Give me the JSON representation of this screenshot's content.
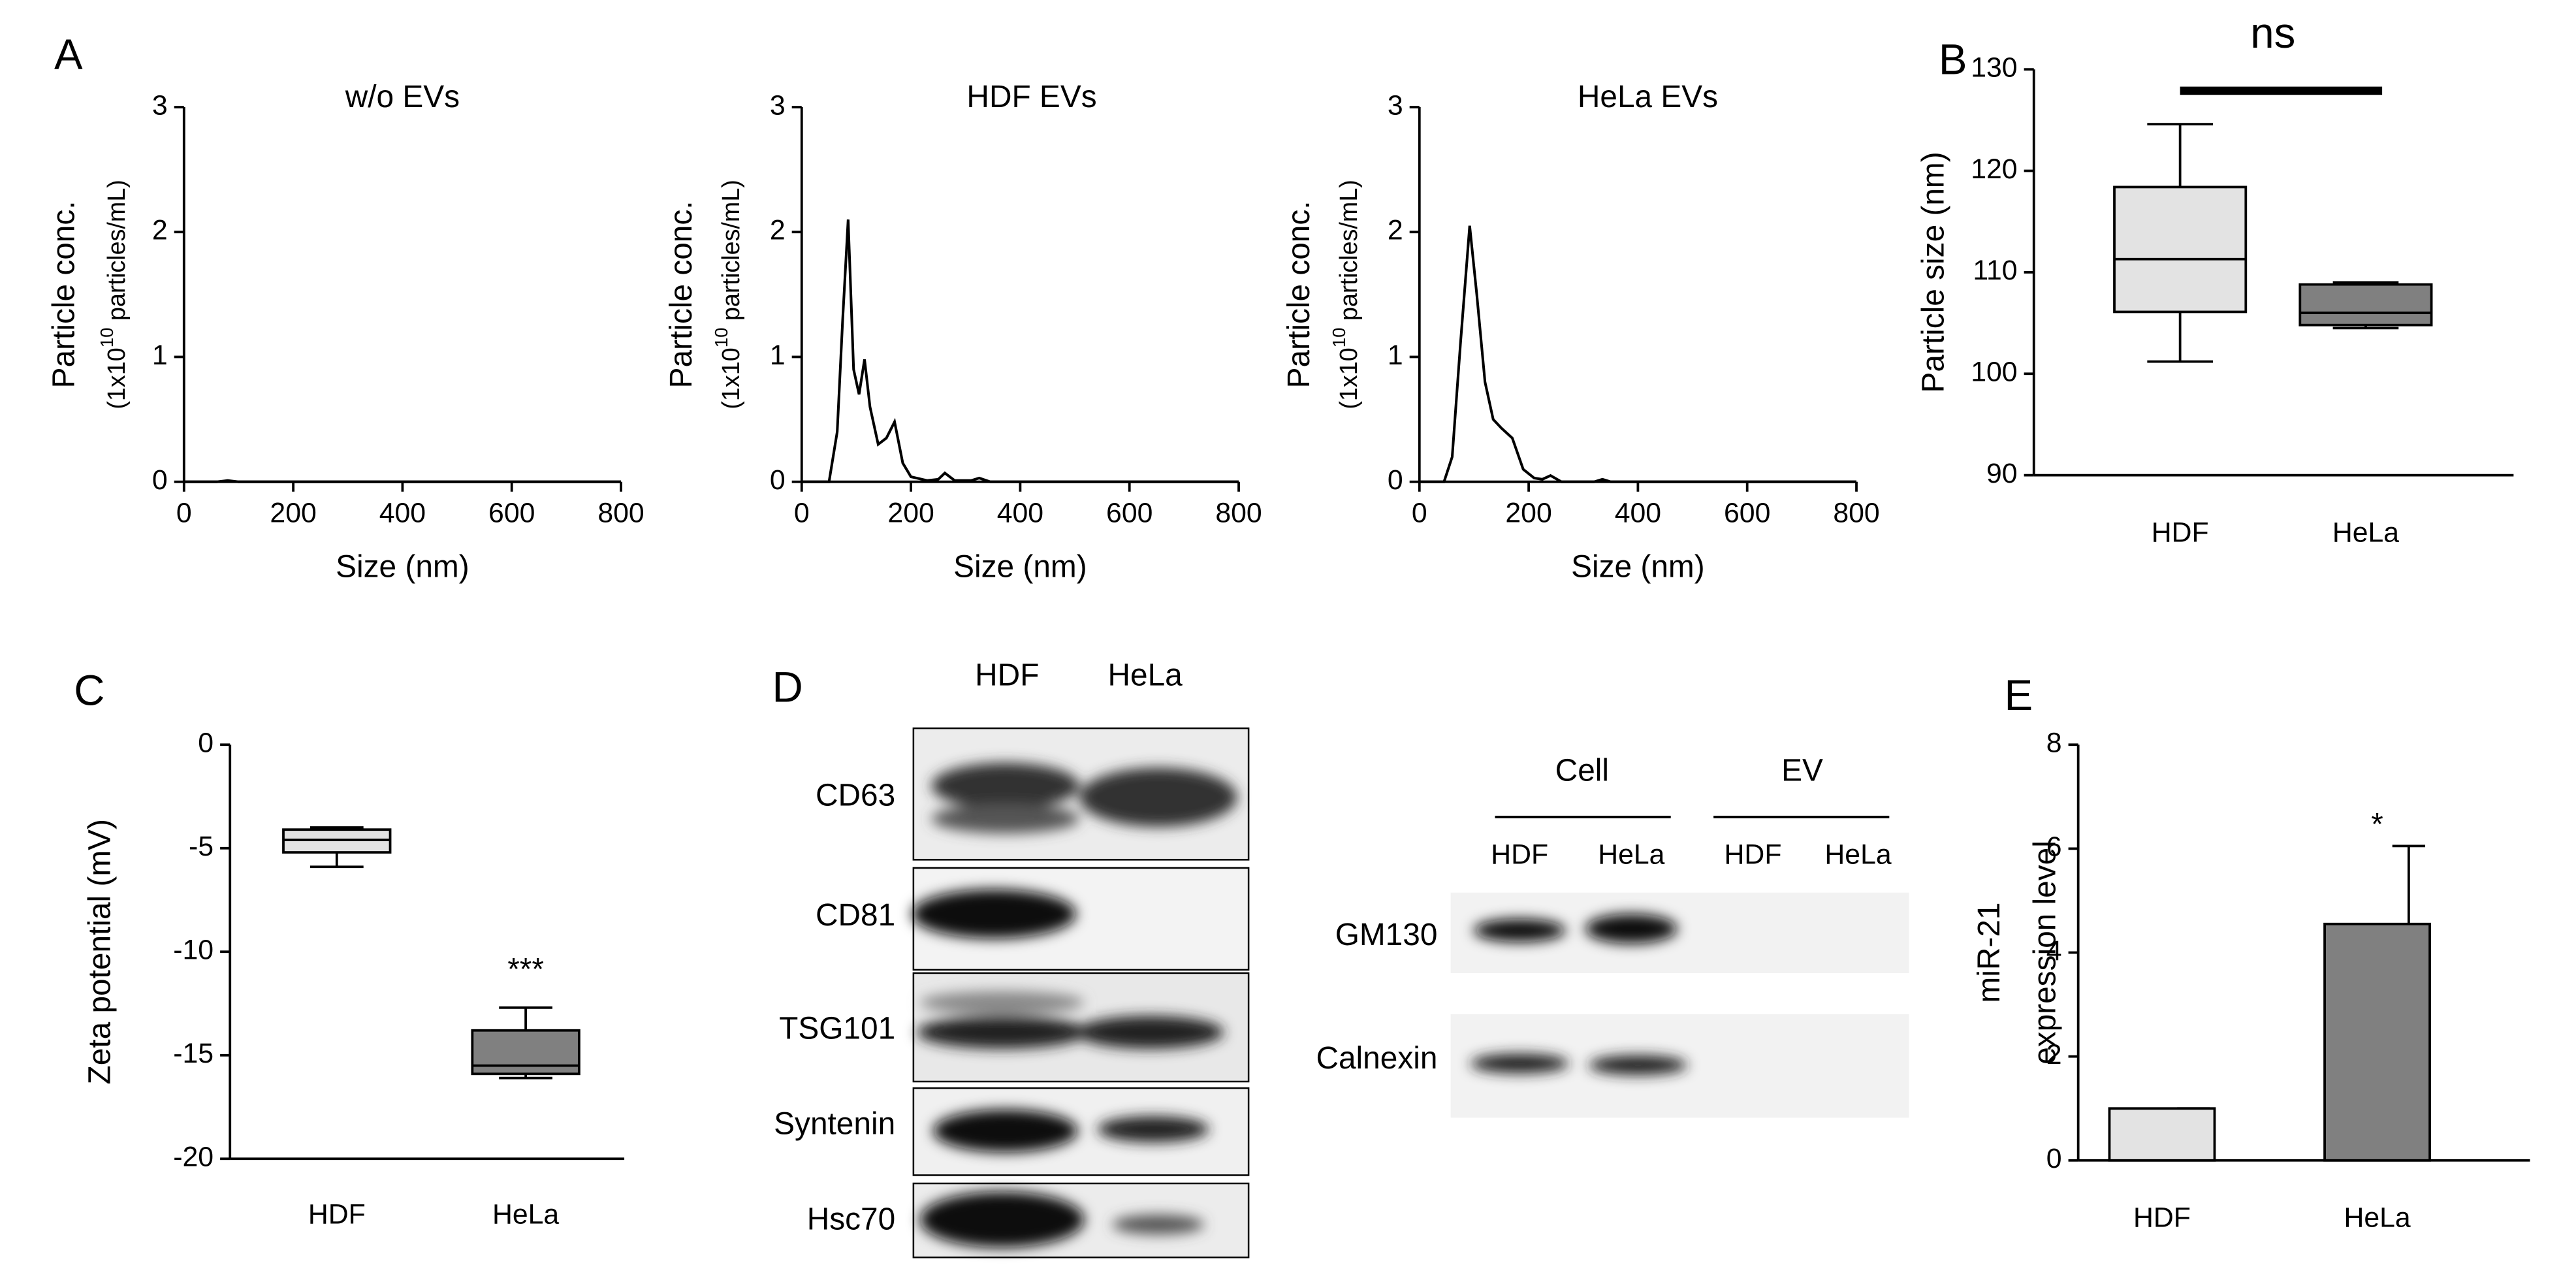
{
  "chart_data": [
    {
      "type": "line",
      "panel": "A",
      "title": "w/o EVs",
      "x_label": "Size (nm)",
      "y_label": "Particle conc.",
      "y_label_sub": "(1x10",
      "y_label_sup": "10",
      "y_label_unit": " particles/mL)",
      "x": [
        0,
        60,
        80,
        100,
        200,
        800
      ],
      "values": [
        0,
        0,
        0.01,
        0,
        0,
        0
      ],
      "color": "#000000",
      "xlim": [
        0,
        800
      ],
      "xticks": [
        0,
        200,
        400,
        600,
        800
      ],
      "ylim": [
        0,
        3
      ],
      "yticks": [
        0,
        1,
        2,
        3
      ]
    },
    {
      "type": "line",
      "title": "HDF EVs",
      "x_label": "Size (nm)",
      "y_label": "Particle conc.",
      "y_label_sub": "(1x10",
      "y_label_sup": "10",
      "y_label_unit": " particles/mL)",
      "x": [
        0,
        50,
        65,
        75,
        85,
        95,
        105,
        115,
        125,
        140,
        155,
        170,
        185,
        200,
        230,
        250,
        262,
        280,
        310,
        325,
        345,
        800
      ],
      "values": [
        0,
        0,
        0.4,
        1.3,
        2.1,
        0.9,
        0.7,
        0.98,
        0.6,
        0.3,
        0.35,
        0.48,
        0.15,
        0.04,
        0.01,
        0.02,
        0.07,
        0.01,
        0.01,
        0.03,
        0,
        0
      ],
      "color": "#000000",
      "xlim": [
        0,
        800
      ],
      "xticks": [
        0,
        200,
        400,
        600,
        800
      ],
      "ylim": [
        0,
        3
      ],
      "yticks": [
        0,
        1,
        2,
        3
      ]
    },
    {
      "type": "line",
      "title": "HeLa EVs",
      "x_label": "Size (nm)",
      "y_label": "Particle conc.",
      "y_label_sub": "(1x10",
      "y_label_sup": "10",
      "y_label_unit": " particles/mL)",
      "x": [
        0,
        45,
        60,
        75,
        92,
        105,
        120,
        135,
        150,
        170,
        190,
        210,
        225,
        240,
        260,
        320,
        335,
        350,
        800
      ],
      "values": [
        0,
        0,
        0.2,
        1.1,
        2.05,
        1.5,
        0.8,
        0.5,
        0.43,
        0.35,
        0.1,
        0.03,
        0.02,
        0.05,
        0,
        0,
        0.02,
        0,
        0
      ],
      "color": "#000000",
      "xlim": [
        0,
        800
      ],
      "xticks": [
        0,
        200,
        400,
        600,
        800
      ],
      "ylim": [
        0,
        3
      ],
      "yticks": [
        0,
        1,
        2,
        3
      ]
    },
    {
      "type": "box",
      "panel": "B",
      "y_label": "Particle size (nm)",
      "categories": [
        "HDF",
        "HeLa"
      ],
      "min": [
        101.2,
        104.5
      ],
      "q1": [
        106.1,
        104.8
      ],
      "median": [
        111.3,
        106
      ],
      "q3": [
        118.4,
        108.8
      ],
      "max": [
        124.6,
        109
      ],
      "colors": [
        "#e3e3e3",
        "#808080"
      ],
      "ylim": [
        90,
        130
      ],
      "yticks": [
        90,
        100,
        110,
        120,
        130
      ],
      "comparison_label": "ns"
    },
    {
      "type": "box",
      "panel": "C",
      "y_label": "Zeta potential (mV)",
      "categories": [
        "HDF",
        "HeLa"
      ],
      "min": [
        -5.9,
        -16.1
      ],
      "q1": [
        -5.2,
        -15.9
      ],
      "median": [
        -4.6,
        -15.5
      ],
      "q3": [
        -4.1,
        -13.8
      ],
      "max": [
        -4.0,
        -12.7
      ],
      "colors": [
        "#e3e3e3",
        "#808080"
      ],
      "ylim": [
        -20,
        0
      ],
      "yticks": [
        -20,
        -15,
        -10,
        -5,
        0
      ],
      "annotation": "***"
    },
    {
      "type": "bar",
      "panel": "E",
      "y_label": "miR-21",
      "y_label_2": "expression level",
      "categories": [
        "HDF",
        "HeLa"
      ],
      "values": [
        1,
        4.55
      ],
      "errors": [
        0,
        1.5
      ],
      "colors": [
        "#e3e3e3",
        "#808080"
      ],
      "ylim": [
        0,
        8
      ],
      "yticks": [
        0,
        2,
        4,
        6,
        8
      ],
      "annotation": "*"
    }
  ],
  "western_blot": {
    "panel": "D",
    "lanes": [
      "HDF",
      "HeLa"
    ],
    "rows": [
      "CD63",
      "CD81",
      "TSG101",
      "Syntenin",
      "Hsc70"
    ],
    "groups": [
      "Cell",
      "EV"
    ],
    "group_lanes": [
      "HDF",
      "HeLa",
      "HDF",
      "HeLa"
    ],
    "proteins": [
      "GM130",
      "Calnexin"
    ]
  }
}
